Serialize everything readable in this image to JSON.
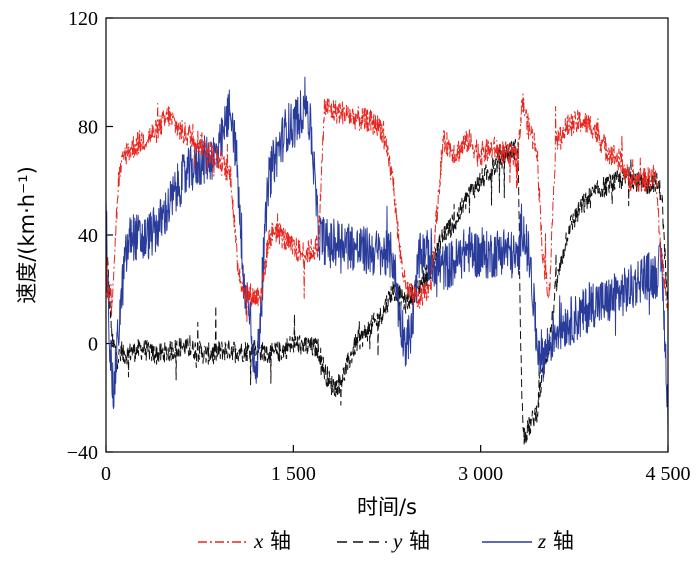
{
  "chart_data": {
    "type": "line",
    "xlabel": "时间/s",
    "ylabel": "速度/(km·h⁻¹)",
    "xlim": [
      0,
      4500
    ],
    "ylim": [
      -40,
      120
    ],
    "xticks": [
      0,
      1500,
      3000,
      4500
    ],
    "xtick_labels": [
      "0",
      "1 500",
      "3 000",
      "4 500"
    ],
    "yticks": [
      -40,
      0,
      40,
      80,
      120
    ],
    "ytick_labels": [
      "−40",
      "0",
      "40",
      "80",
      "120"
    ],
    "legend_position": "bottom",
    "colors": {
      "x": "#e8261f",
      "y": "#111111",
      "z": "#2a3c9a"
    },
    "series": [
      {
        "name": "x 轴",
        "label_italic": "x",
        "label_suffix": " 轴",
        "dash": "dashdot",
        "x": [
          0,
          50,
          100,
          150,
          200,
          300,
          400,
          500,
          600,
          700,
          800,
          900,
          1000,
          1050,
          1100,
          1150,
          1200,
          1250,
          1300,
          1350,
          1400,
          1500,
          1600,
          1700,
          1750,
          1800,
          1900,
          2000,
          2100,
          2200,
          2300,
          2350,
          2400,
          2450,
          2500,
          2600,
          2700,
          2800,
          2900,
          3000,
          3100,
          3200,
          3300,
          3330,
          3380,
          3450,
          3500,
          3550,
          3600,
          3700,
          3800,
          3900,
          4000,
          4100,
          4200,
          4300,
          4400,
          4450,
          4500
        ],
        "y": [
          20,
          18,
          60,
          70,
          72,
          75,
          78,
          84,
          78,
          76,
          72,
          68,
          62,
          30,
          20,
          18,
          17,
          20,
          38,
          42,
          40,
          35,
          33,
          36,
          88,
          86,
          85,
          83,
          82,
          80,
          60,
          35,
          20,
          18,
          16,
          22,
          75,
          70,
          75,
          70,
          72,
          70,
          68,
          90,
          80,
          72,
          30,
          18,
          75,
          80,
          82,
          80,
          72,
          68,
          60,
          60,
          62,
          30,
          15
        ]
      },
      {
        "name": "y 轴",
        "label_italic": "y",
        "label_suffix": " 轴",
        "dash": "dash",
        "x": [
          0,
          50,
          100,
          200,
          300,
          400,
          500,
          600,
          700,
          800,
          900,
          1000,
          1100,
          1200,
          1300,
          1400,
          1500,
          1600,
          1700,
          1750,
          1800,
          1850,
          1900,
          2000,
          2100,
          2200,
          2300,
          2400,
          2500,
          2600,
          2700,
          2800,
          2900,
          3000,
          3100,
          3200,
          3300,
          3320,
          3340,
          3400,
          3450,
          3500,
          3550,
          3600,
          3700,
          3800,
          3900,
          4000,
          4100,
          4200,
          4300,
          4400,
          4450,
          4500
        ],
        "y": [
          40,
          0,
          -5,
          -3,
          -2,
          -4,
          -3,
          -1,
          -2,
          -4,
          -3,
          -2,
          -3,
          -2,
          -4,
          -3,
          0,
          -1,
          -2,
          -10,
          -15,
          -16,
          -12,
          0,
          5,
          10,
          20,
          15,
          20,
          28,
          40,
          45,
          55,
          60,
          65,
          70,
          72,
          0,
          -35,
          -30,
          -25,
          -10,
          0,
          20,
          42,
          50,
          55,
          58,
          60,
          62,
          58,
          60,
          55,
          10
        ]
      },
      {
        "name": "z 轴",
        "label_italic": "z",
        "label_suffix": " 轴",
        "dash": "solid",
        "x": [
          0,
          30,
          60,
          100,
          150,
          200,
          300,
          400,
          500,
          600,
          700,
          800,
          900,
          1000,
          1050,
          1100,
          1150,
          1200,
          1250,
          1300,
          1350,
          1400,
          1450,
          1500,
          1550,
          1600,
          1650,
          1700,
          1800,
          1900,
          2000,
          2100,
          2200,
          2300,
          2350,
          2400,
          2450,
          2500,
          2550,
          2600,
          2700,
          2800,
          2900,
          3000,
          3100,
          3200,
          3300,
          3330,
          3400,
          3450,
          3500,
          3550,
          3600,
          3700,
          3800,
          3900,
          4000,
          4100,
          4200,
          4300,
          4400,
          4450,
          4500
        ],
        "y": [
          45,
          0,
          -20,
          5,
          30,
          40,
          38,
          42,
          50,
          60,
          65,
          68,
          70,
          88,
          65,
          20,
          15,
          -15,
          22,
          60,
          68,
          74,
          80,
          80,
          84,
          90,
          75,
          40,
          36,
          38,
          35,
          34,
          33,
          32,
          10,
          0,
          5,
          30,
          35,
          30,
          28,
          30,
          35,
          32,
          33,
          35,
          30,
          45,
          28,
          0,
          -5,
          0,
          5,
          8,
          10,
          15,
          15,
          18,
          20,
          25,
          25,
          30,
          -25
        ]
      }
    ]
  }
}
